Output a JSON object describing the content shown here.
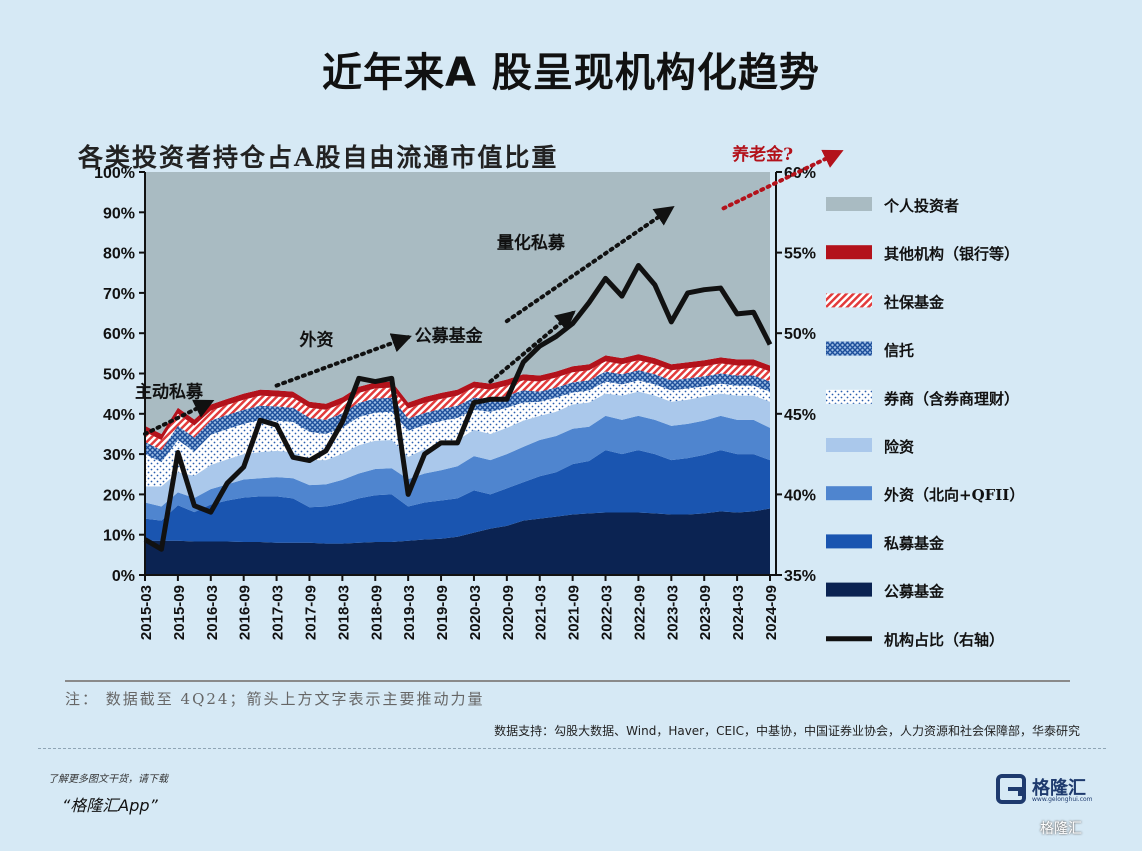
{
  "page": {
    "title": "近年来A 股呈现机构化趋势",
    "note": "注： 数据截至 4Q24；箭头上方文字表示主要推动力量",
    "source": "数据支持：勾股大数据、Wind，Haver，CEIC，中基协，中国证券业协会，人力资源和社会保障部，华泰研究",
    "promo_small": "了解更多图文干货，请下载",
    "promo_big": "“格隆汇App”",
    "logo_text": "格隆汇",
    "logo_sub": "www.gelonghui.com",
    "watermark_badge": "格隆汇"
  },
  "chart_data": {
    "type": "area",
    "title": "各类投资者持仓占A股自由流通市值比重",
    "stacked": true,
    "categories": [
      "2015-03",
      "2015-09",
      "2016-03",
      "2016-09",
      "2017-03",
      "2017-09",
      "2018-03",
      "2018-09",
      "2019-03",
      "2019-09",
      "2020-03",
      "2020-09",
      "2021-03",
      "2021-09",
      "2022-03",
      "2022-09",
      "2023-03",
      "2023-09",
      "2024-03",
      "2024-09"
    ],
    "x": [
      "2015-03",
      "2015-06",
      "2015-09",
      "2015-12",
      "2016-03",
      "2016-06",
      "2016-09",
      "2016-12",
      "2017-03",
      "2017-06",
      "2017-09",
      "2017-12",
      "2018-03",
      "2018-06",
      "2018-09",
      "2018-12",
      "2019-03",
      "2019-06",
      "2019-09",
      "2019-12",
      "2020-03",
      "2020-06",
      "2020-09",
      "2020-12",
      "2021-03",
      "2021-06",
      "2021-09",
      "2021-12",
      "2022-03",
      "2022-06",
      "2022-09",
      "2022-12",
      "2023-03",
      "2023-06",
      "2023-09",
      "2023-12",
      "2024-03",
      "2024-06",
      "2024-09"
    ],
    "yleft": {
      "min": 0,
      "max": 100,
      "ticks": [
        "0%",
        "10%",
        "20%",
        "30%",
        "40%",
        "50%",
        "60%",
        "70%",
        "80%",
        "90%",
        "100%"
      ]
    },
    "yright": {
      "min": 35,
      "max": 60,
      "ticks": [
        "35%",
        "40%",
        "45%",
        "50%",
        "55%",
        "60%"
      ]
    },
    "series": [
      {
        "name": "公募基金",
        "color": "#0b2352",
        "values": [
          8.5,
          8.5,
          8.5,
          8.3,
          8.3,
          8.3,
          8.2,
          8.2,
          8.0,
          8.0,
          8.0,
          7.8,
          7.8,
          8.0,
          8.2,
          8.2,
          8.5,
          8.8,
          9.0,
          9.5,
          10.5,
          11.5,
          12.2,
          13.5,
          14.0,
          14.5,
          15.0,
          15.3,
          15.5,
          15.5,
          15.5,
          15.3,
          15.0,
          15.0,
          15.3,
          15.8,
          15.5,
          15.8,
          16.5
        ]
      },
      {
        "name": "私募基金",
        "color": "#1a55b0",
        "values": [
          5.5,
          5.0,
          8.8,
          7.3,
          9.2,
          10.2,
          11.0,
          11.3,
          11.5,
          11.0,
          8.8,
          9.2,
          10.0,
          11.0,
          11.6,
          11.8,
          8.5,
          9.2,
          9.5,
          9.5,
          10.5,
          8.5,
          9.3,
          9.5,
          10.5,
          11.0,
          12.5,
          13.0,
          15.5,
          14.5,
          15.5,
          14.7,
          13.5,
          14.0,
          14.5,
          15.2,
          14.5,
          14.2,
          12.0
        ]
      },
      {
        "name": "外资（北向+QFII）",
        "color": "#4f85cf",
        "values": [
          4.0,
          3.5,
          3.2,
          3.5,
          3.8,
          4.0,
          4.5,
          4.5,
          4.8,
          5.0,
          5.5,
          5.5,
          5.8,
          6.2,
          6.5,
          6.5,
          6.8,
          7.2,
          7.5,
          8.0,
          8.5,
          8.5,
          8.5,
          8.8,
          9.0,
          9.0,
          8.8,
          8.5,
          8.5,
          8.5,
          8.5,
          8.5,
          8.5,
          8.5,
          8.5,
          8.5,
          8.5,
          8.5,
          8.0
        ]
      },
      {
        "name": "险资",
        "color": "#aac8eb",
        "values": [
          4.0,
          5.0,
          5.0,
          5.5,
          6.0,
          6.2,
          6.3,
          6.5,
          6.5,
          6.5,
          6.2,
          6.0,
          6.5,
          7.0,
          7.0,
          7.0,
          5.5,
          6.0,
          6.2,
          6.5,
          6.5,
          6.5,
          6.5,
          6.5,
          6.0,
          6.0,
          6.0,
          6.0,
          5.5,
          6.0,
          6.0,
          6.0,
          6.0,
          6.0,
          6.0,
          5.5,
          6.0,
          6.0,
          6.5
        ]
      },
      {
        "name": "券商（含券商理财）",
        "color": "#ffffff",
        "pattern": "dots",
        "values": [
          8.0,
          6.0,
          8.0,
          6.0,
          7.5,
          7.5,
          7.5,
          8.0,
          7.5,
          7.5,
          7.0,
          6.5,
          6.5,
          7.0,
          7.0,
          7.0,
          6.5,
          6.0,
          6.0,
          5.5,
          5.0,
          5.5,
          5.0,
          4.5,
          3.5,
          3.5,
          3.0,
          3.0,
          3.0,
          2.8,
          2.8,
          2.8,
          2.8,
          2.8,
          2.5,
          2.5,
          2.5,
          2.5,
          2.5
        ]
      },
      {
        "name": "信托",
        "color": "#3b6cb8",
        "pattern": "cross",
        "values": [
          3.0,
          3.0,
          3.5,
          3.5,
          3.5,
          3.5,
          3.5,
          3.5,
          3.5,
          3.5,
          3.5,
          3.5,
          3.5,
          3.5,
          3.5,
          3.5,
          3.0,
          3.0,
          3.0,
          3.0,
          3.0,
          3.0,
          3.0,
          3.0,
          2.5,
          2.5,
          2.5,
          2.5,
          2.5,
          2.5,
          2.5,
          2.5,
          2.5,
          2.5,
          2.5,
          2.5,
          2.5,
          2.5,
          2.5
        ]
      },
      {
        "name": "社保基金",
        "color": "#e23b3b",
        "pattern": "hatch",
        "values": [
          2.5,
          2.5,
          3.0,
          3.0,
          2.5,
          2.5,
          2.5,
          2.5,
          2.5,
          2.5,
          2.5,
          2.5,
          2.5,
          2.5,
          2.5,
          2.5,
          2.5,
          2.5,
          2.5,
          2.5,
          2.5,
          2.5,
          2.5,
          2.5,
          2.5,
          2.5,
          2.5,
          2.5,
          2.5,
          2.5,
          2.5,
          2.5,
          2.5,
          2.5,
          2.5,
          2.5,
          2.5,
          2.5,
          2.5
        ]
      },
      {
        "name": "其他机构（银行等）",
        "color": "#b3121b",
        "values": [
          1.5,
          1.5,
          1.5,
          1.5,
          1.5,
          1.5,
          1.5,
          1.5,
          1.5,
          1.5,
          1.5,
          1.5,
          1.5,
          1.5,
          1.5,
          1.5,
          1.5,
          1.5,
          1.5,
          1.5,
          1.5,
          1.5,
          1.5,
          1.5,
          1.5,
          1.5,
          1.5,
          1.5,
          1.5,
          1.5,
          1.5,
          1.5,
          1.5,
          1.5,
          1.5,
          1.5,
          1.5,
          1.5,
          1.5
        ]
      },
      {
        "name": "个人投资者",
        "color": "#a9bbc2",
        "remainder": true
      }
    ],
    "line": {
      "name": "机构占比（右轴）",
      "color": "#111111",
      "axis": "right",
      "values": [
        37.2,
        36.6,
        42.6,
        39.3,
        38.9,
        40.7,
        41.7,
        44.6,
        44.3,
        42.3,
        42.1,
        42.7,
        44.5,
        47.2,
        47.0,
        47.2,
        40.0,
        42.5,
        43.2,
        43.2,
        45.7,
        45.9,
        45.9,
        48.2,
        49.2,
        49.8,
        50.6,
        51.9,
        53.4,
        52.3,
        54.2,
        53.0,
        50.7,
        52.5,
        52.7,
        52.8,
        51.2,
        51.3,
        49.3
      ]
    },
    "annotations": [
      {
        "text": "主动私募",
        "x": "2015-03",
        "y": 44
      },
      {
        "text": "外资",
        "x": "2017-09",
        "y": 57
      },
      {
        "text": "公募基金",
        "x": "2019-06",
        "y": 58
      },
      {
        "text": "量化私募",
        "x": "2020-09",
        "y": 81
      },
      {
        "text": "养老金?",
        "x": "2024-03",
        "y": 103
      }
    ],
    "legend_position": "right"
  }
}
